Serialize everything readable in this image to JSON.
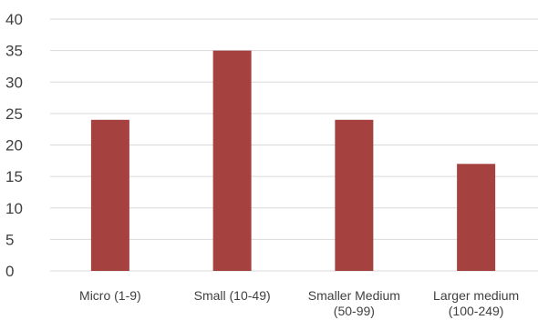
{
  "chart_data": {
    "type": "bar",
    "categories": [
      [
        "Micro (1-9)"
      ],
      [
        "Small (10-49)"
      ],
      [
        "Smaller Medium",
        "(50-99)"
      ],
      [
        "Larger medium",
        "(100-249)"
      ]
    ],
    "values": [
      24,
      35,
      24,
      17
    ],
    "ylim": [
      0,
      40
    ],
    "yticks": [
      0,
      5,
      10,
      15,
      20,
      25,
      30,
      35,
      40
    ],
    "title": "",
    "xlabel": "",
    "ylabel": "",
    "grid": true,
    "legend": "none",
    "bar_color": "#a5413f"
  }
}
